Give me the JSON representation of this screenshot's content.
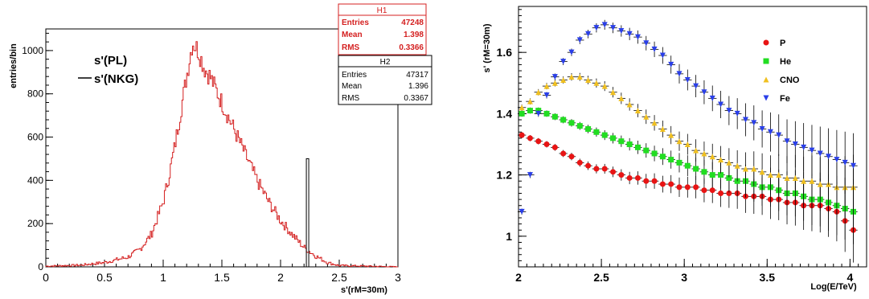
{
  "chart_data": [
    {
      "type": "histogram",
      "xlabel": "s'(rM=30m)",
      "ylabel": "entries/bin",
      "xlim": [
        0,
        3
      ],
      "ylim": [
        0,
        1100
      ],
      "xticks": [
        0,
        0.5,
        1,
        1.5,
        2,
        2.5,
        3
      ],
      "yticks": [
        0,
        200,
        400,
        600,
        800,
        1000
      ],
      "legend": [
        {
          "label": "s'(PL)",
          "marker": "none"
        },
        {
          "label": "s'(NKG)",
          "marker": "line"
        }
      ],
      "stats_boxes": [
        {
          "title": "H1",
          "color": "#d42020",
          "rows": [
            [
              "Entries",
              "47248"
            ],
            [
              "Mean",
              "1.398"
            ],
            [
              "RMS",
              "0.3366"
            ]
          ]
        },
        {
          "title": "H2",
          "color": "#000000",
          "rows": [
            [
              "Entries",
              "47317"
            ],
            [
              "Mean",
              "1.396"
            ],
            [
              "RMS",
              "0.3367"
            ]
          ]
        }
      ],
      "series": [
        {
          "color": "#d42020",
          "profile_x": [
            0,
            0.3,
            0.5,
            0.7,
            0.8,
            0.9,
            1.0,
            1.05,
            1.1,
            1.15,
            1.2,
            1.25,
            1.3,
            1.35,
            1.4,
            1.5,
            1.6,
            1.7,
            1.8,
            1.9,
            2.0,
            2.1,
            2.2,
            2.3,
            2.4,
            2.5,
            3.0
          ],
          "profile_y": [
            3,
            8,
            20,
            45,
            80,
            150,
            300,
            420,
            560,
            720,
            880,
            1040,
            1000,
            920,
            880,
            760,
            640,
            520,
            400,
            300,
            215,
            150,
            90,
            50,
            20,
            6,
            0
          ]
        },
        {
          "color": "#000000",
          "spike_x": 2.23,
          "spike_y": 500
        }
      ]
    },
    {
      "type": "scatter",
      "xlabel": "Log(E/TeV)",
      "ylabel": "s' (rM=30m)",
      "xlim": [
        2,
        4.1
      ],
      "ylim": [
        0.9,
        1.75
      ],
      "xticks": [
        2,
        2.5,
        3,
        3.5,
        4
      ],
      "yticks": [
        1,
        1.2,
        1.4,
        1.6
      ],
      "legend_position": "top-right",
      "series": [
        {
          "name": "P",
          "color": "#e81414",
          "marker": "circle",
          "x": [
            2.02,
            2.07,
            2.12,
            2.17,
            2.22,
            2.27,
            2.32,
            2.37,
            2.42,
            2.47,
            2.52,
            2.57,
            2.62,
            2.67,
            2.72,
            2.77,
            2.82,
            2.87,
            2.92,
            2.97,
            3.02,
            3.07,
            3.12,
            3.17,
            3.22,
            3.27,
            3.32,
            3.37,
            3.42,
            3.47,
            3.52,
            3.57,
            3.62,
            3.67,
            3.72,
            3.77,
            3.82,
            3.87,
            3.92,
            3.97,
            4.02
          ],
          "y": [
            1.33,
            1.32,
            1.31,
            1.3,
            1.29,
            1.27,
            1.26,
            1.24,
            1.23,
            1.22,
            1.22,
            1.21,
            1.2,
            1.19,
            1.19,
            1.18,
            1.18,
            1.17,
            1.17,
            1.16,
            1.16,
            1.16,
            1.15,
            1.15,
            1.14,
            1.14,
            1.14,
            1.13,
            1.13,
            1.13,
            1.12,
            1.12,
            1.11,
            1.11,
            1.1,
            1.1,
            1.1,
            1.09,
            1.08,
            1.05,
            1.02
          ]
        },
        {
          "name": "He",
          "color": "#22dd22",
          "marker": "square",
          "x": [
            2.02,
            2.07,
            2.12,
            2.17,
            2.22,
            2.27,
            2.32,
            2.37,
            2.42,
            2.47,
            2.52,
            2.57,
            2.62,
            2.67,
            2.72,
            2.77,
            2.82,
            2.87,
            2.92,
            2.97,
            3.02,
            3.07,
            3.12,
            3.17,
            3.22,
            3.27,
            3.32,
            3.37,
            3.42,
            3.47,
            3.52,
            3.57,
            3.62,
            3.67,
            3.72,
            3.77,
            3.82,
            3.87,
            3.92,
            3.97,
            4.02
          ],
          "y": [
            1.4,
            1.41,
            1.41,
            1.4,
            1.39,
            1.38,
            1.37,
            1.36,
            1.35,
            1.34,
            1.33,
            1.32,
            1.31,
            1.3,
            1.29,
            1.28,
            1.27,
            1.26,
            1.25,
            1.24,
            1.23,
            1.22,
            1.21,
            1.2,
            1.2,
            1.19,
            1.18,
            1.18,
            1.17,
            1.16,
            1.16,
            1.15,
            1.14,
            1.14,
            1.13,
            1.12,
            1.12,
            1.11,
            1.1,
            1.09,
            1.08
          ]
        },
        {
          "name": "CNO",
          "color": "#f0c020",
          "marker": "triangle",
          "x": [
            2.02,
            2.07,
            2.12,
            2.17,
            2.22,
            2.27,
            2.32,
            2.37,
            2.42,
            2.47,
            2.52,
            2.57,
            2.62,
            2.67,
            2.72,
            2.77,
            2.82,
            2.87,
            2.92,
            2.97,
            3.02,
            3.07,
            3.12,
            3.17,
            3.22,
            3.27,
            3.32,
            3.37,
            3.42,
            3.47,
            3.52,
            3.57,
            3.62,
            3.67,
            3.72,
            3.77,
            3.82,
            3.87,
            3.92,
            3.97,
            4.02
          ],
          "y": [
            1.42,
            1.44,
            1.47,
            1.49,
            1.5,
            1.51,
            1.52,
            1.52,
            1.51,
            1.5,
            1.49,
            1.47,
            1.45,
            1.43,
            1.41,
            1.39,
            1.37,
            1.35,
            1.33,
            1.31,
            1.3,
            1.28,
            1.27,
            1.26,
            1.25,
            1.24,
            1.23,
            1.22,
            1.22,
            1.21,
            1.2,
            1.2,
            1.19,
            1.19,
            1.18,
            1.18,
            1.17,
            1.17,
            1.16,
            1.16,
            1.16
          ]
        },
        {
          "name": "Fe",
          "color": "#2a3fe8",
          "marker": "triangle-down",
          "x": [
            2.02,
            2.07,
            2.12,
            2.17,
            2.22,
            2.27,
            2.32,
            2.37,
            2.42,
            2.47,
            2.52,
            2.57,
            2.62,
            2.67,
            2.72,
            2.77,
            2.82,
            2.87,
            2.92,
            2.97,
            3.02,
            3.07,
            3.12,
            3.17,
            3.22,
            3.27,
            3.32,
            3.37,
            3.42,
            3.47,
            3.52,
            3.57,
            3.62,
            3.67,
            3.72,
            3.77,
            3.82,
            3.87,
            3.92,
            3.97,
            4.02
          ],
          "y": [
            1.08,
            1.2,
            1.4,
            1.46,
            1.52,
            1.57,
            1.6,
            1.64,
            1.66,
            1.68,
            1.69,
            1.68,
            1.67,
            1.66,
            1.65,
            1.63,
            1.61,
            1.59,
            1.56,
            1.53,
            1.51,
            1.49,
            1.47,
            1.45,
            1.43,
            1.41,
            1.4,
            1.38,
            1.37,
            1.35,
            1.34,
            1.33,
            1.31,
            1.3,
            1.29,
            1.28,
            1.27,
            1.26,
            1.25,
            1.24,
            1.23
          ]
        }
      ]
    }
  ]
}
